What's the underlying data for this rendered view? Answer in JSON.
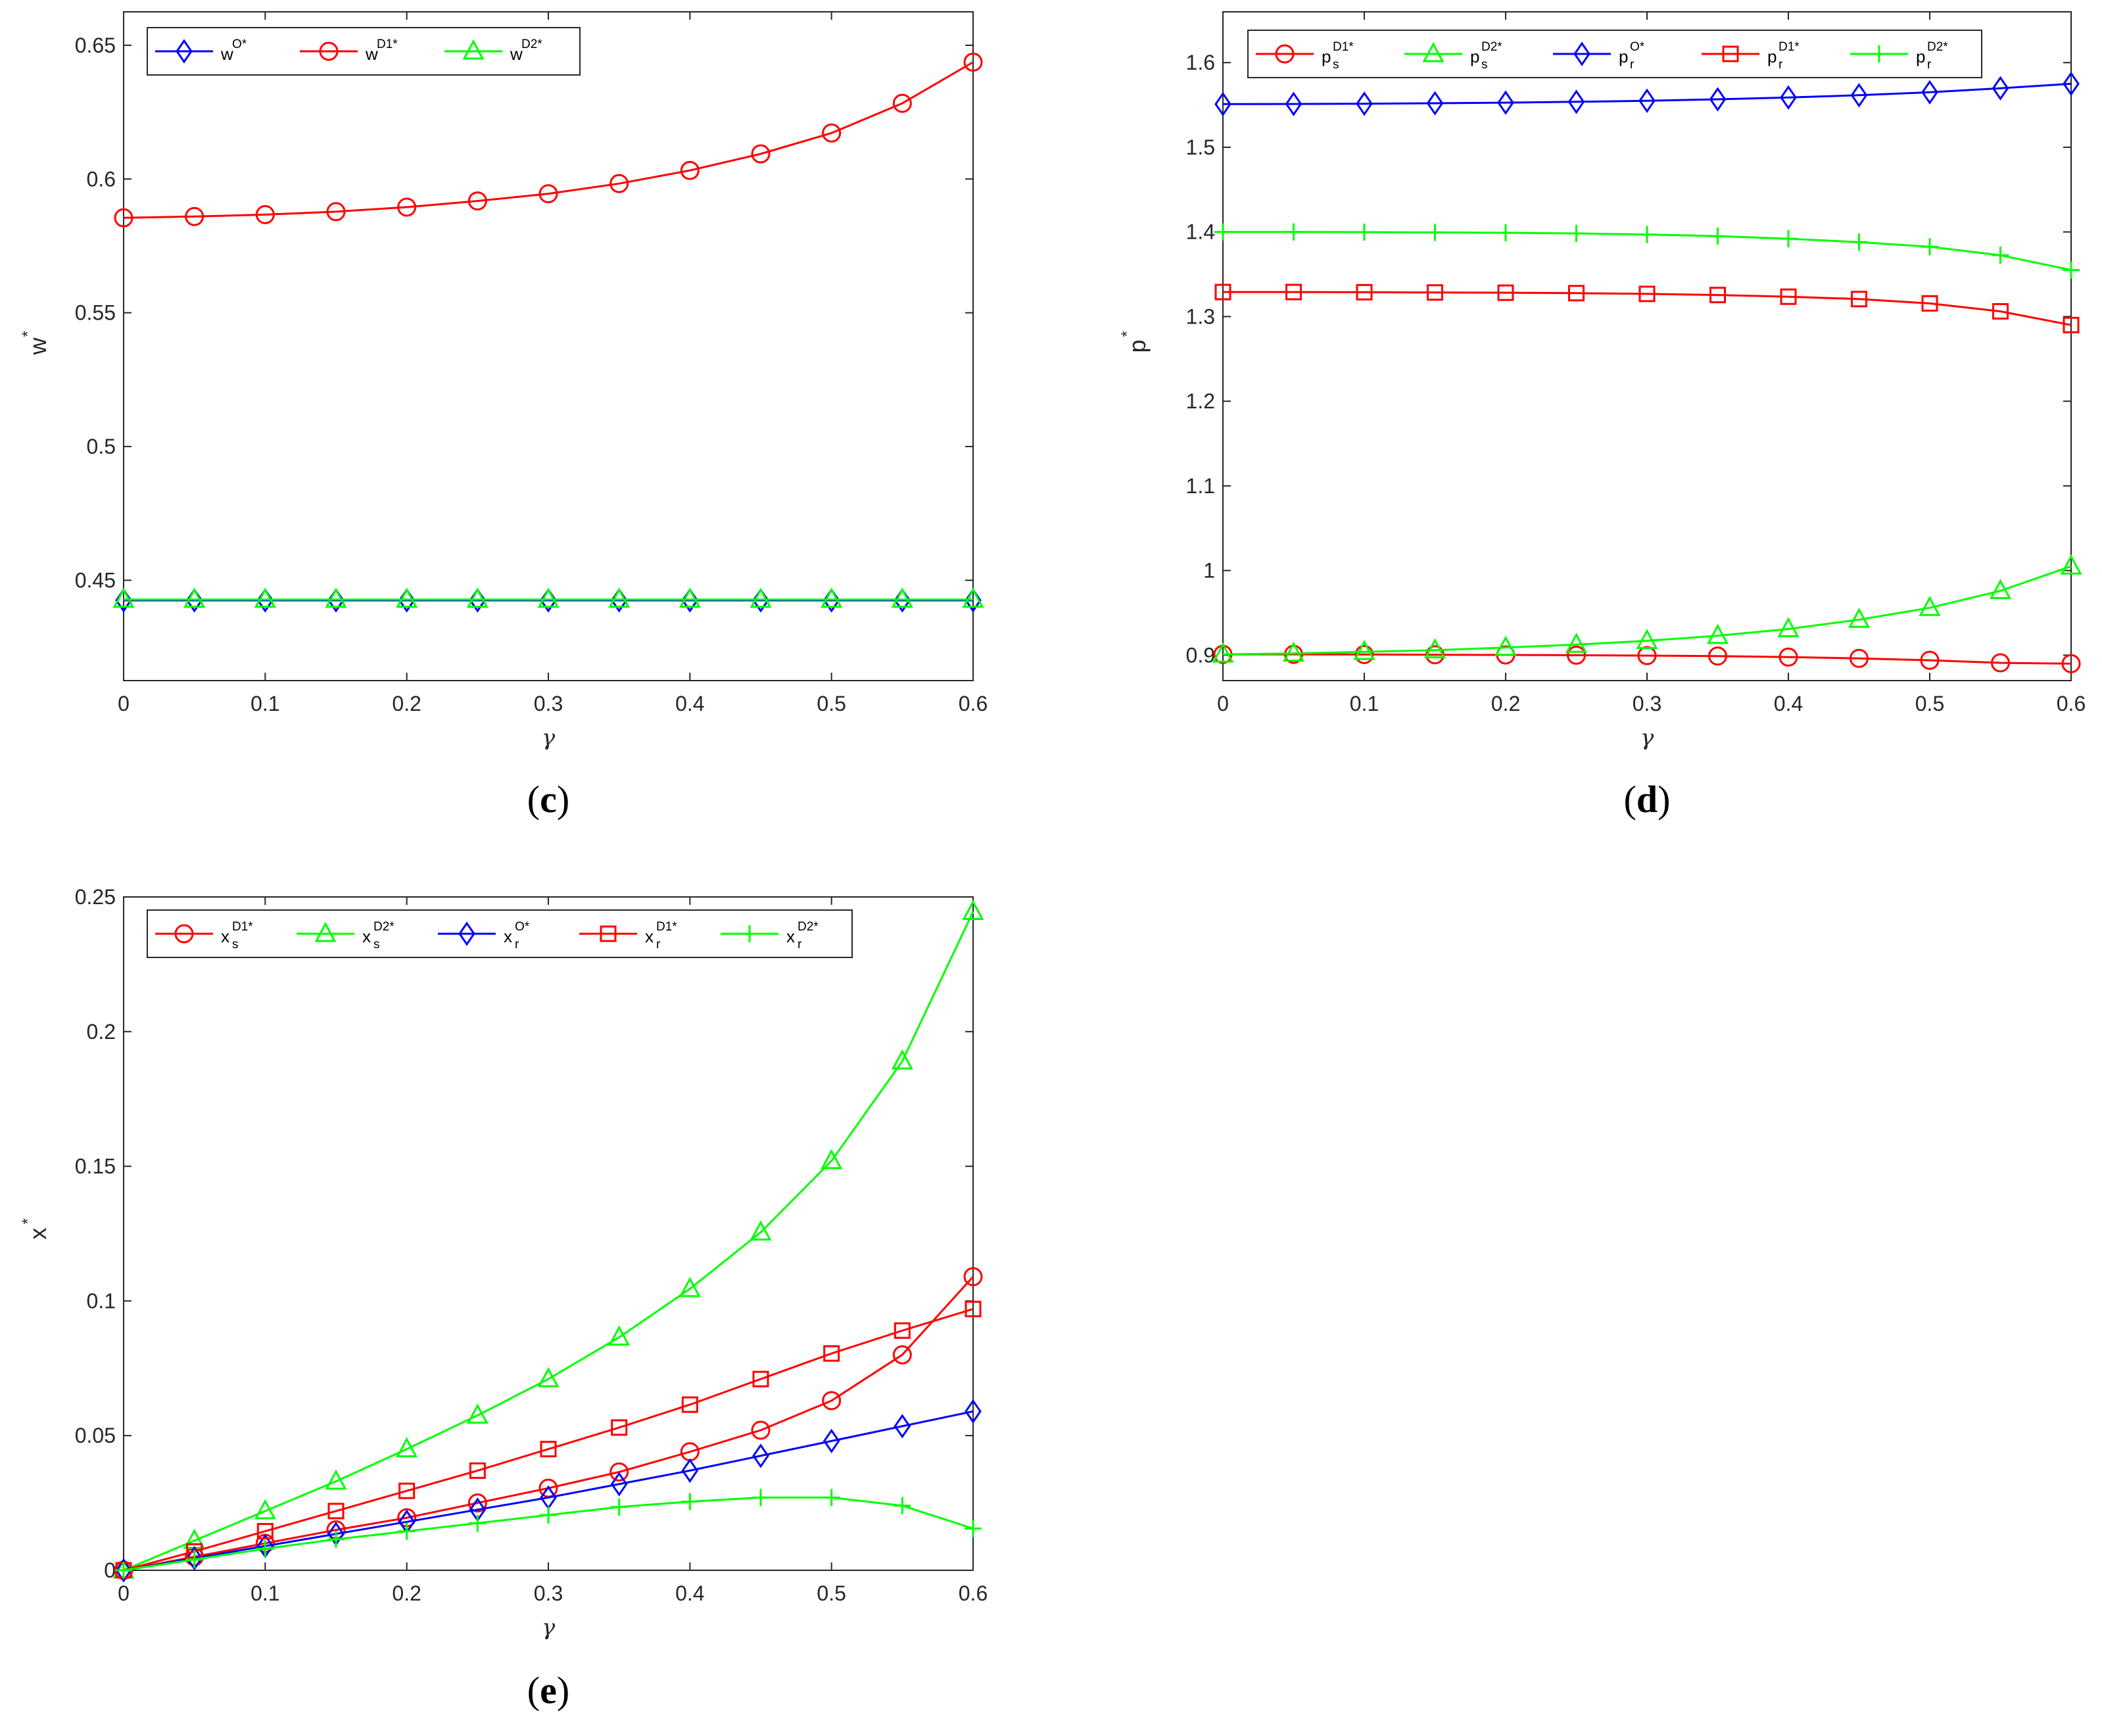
{
  "chart_data": [
    {
      "type": "line",
      "panel": "c",
      "caption": {
        "open": "(",
        "letter": "c",
        "close": ")"
      },
      "xlabel": "γ",
      "ylabel": "w",
      "ylabel_sup": "*",
      "xlim": [
        0,
        0.6
      ],
      "ylim": [
        0.4125,
        0.6625
      ],
      "xticks": [
        0,
        0.1,
        0.2,
        0.3,
        0.4,
        0.5,
        0.6
      ],
      "xtick_labels": [
        "0",
        "0.1",
        "0.2",
        "0.3",
        "0.4",
        "0.5",
        "0.6"
      ],
      "yticks": [
        0.45,
        0.5,
        0.55,
        0.6,
        0.65
      ],
      "ytick_labels": [
        "0.45",
        "0.5",
        "0.55",
        "0.6",
        "0.65"
      ],
      "legend_position": "top-left",
      "x": [
        0,
        0.05,
        0.1,
        0.15,
        0.2,
        0.25,
        0.3,
        0.35,
        0.4,
        0.45,
        0.5,
        0.55,
        0.6
      ],
      "series": [
        {
          "name": "wO*",
          "base": "w",
          "sub": "",
          "sup": "O*",
          "color": "#0000ff",
          "marker": "diamond",
          "values": [
            0.4425,
            0.4425,
            0.4425,
            0.4425,
            0.4425,
            0.4425,
            0.4425,
            0.4425,
            0.4425,
            0.4425,
            0.4425,
            0.4425,
            0.4425
          ]
        },
        {
          "name": "wD1*",
          "base": "w",
          "sub": "",
          "sup": "D1*",
          "color": "#ff0000",
          "marker": "circle",
          "values": [
            0.5855,
            0.586,
            0.5867,
            0.5878,
            0.5895,
            0.5918,
            0.5945,
            0.5983,
            0.6032,
            0.6094,
            0.6172,
            0.6283,
            0.6437
          ]
        },
        {
          "name": "wD2*",
          "base": "w",
          "sub": "",
          "sup": "D2*",
          "color": "#00ff00",
          "marker": "triangle",
          "values": [
            0.4428,
            0.4428,
            0.4428,
            0.4428,
            0.4428,
            0.4428,
            0.4428,
            0.4428,
            0.4428,
            0.4428,
            0.4428,
            0.4428,
            0.4428
          ]
        }
      ]
    },
    {
      "type": "line",
      "panel": "d",
      "caption": {
        "open": "(",
        "letter": "d",
        "close": ")"
      },
      "xlabel": "γ",
      "ylabel": "p",
      "ylabel_sup": "*",
      "xlim": [
        0,
        0.6
      ],
      "ylim": [
        0.87,
        1.66
      ],
      "xticks": [
        0,
        0.1,
        0.2,
        0.3,
        0.4,
        0.5,
        0.6
      ],
      "xtick_labels": [
        "0",
        "0.1",
        "0.2",
        "0.3",
        "0.4",
        "0.5",
        "0.6"
      ],
      "yticks": [
        0.9,
        1,
        1.1,
        1.2,
        1.3,
        1.4,
        1.5,
        1.6
      ],
      "ytick_labels": [
        "0.9",
        "1",
        "1.1",
        "1.2",
        "1.3",
        "1.4",
        "1.5",
        "1.6"
      ],
      "legend_position": "top-left",
      "x": [
        0,
        0.05,
        0.1,
        0.15,
        0.2,
        0.25,
        0.3,
        0.35,
        0.4,
        0.45,
        0.5,
        0.55,
        0.6
      ],
      "series": [
        {
          "name": "psD1*",
          "base": "p",
          "sub": "s",
          "sup": "D1*",
          "color": "#ff0000",
          "marker": "circle",
          "values": [
            0.901,
            0.901,
            0.9008,
            0.9005,
            0.9003,
            0.9,
            0.8995,
            0.899,
            0.8978,
            0.8962,
            0.894,
            0.891,
            0.89
          ]
        },
        {
          "name": "psD2*",
          "base": "p",
          "sub": "s",
          "sup": "D2*",
          "color": "#00ff00",
          "marker": "triangle",
          "values": [
            0.901,
            0.902,
            0.904,
            0.906,
            0.909,
            0.9125,
            0.917,
            0.923,
            0.931,
            0.942,
            0.956,
            0.976,
            1.005
          ]
        },
        {
          "name": "prO*",
          "base": "p",
          "sub": "r",
          "sup": "O*",
          "color": "#0000ff",
          "marker": "diamond",
          "values": [
            1.551,
            1.5512,
            1.5515,
            1.552,
            1.5527,
            1.5537,
            1.555,
            1.5567,
            1.5588,
            1.5615,
            1.565,
            1.5697,
            1.575
          ]
        },
        {
          "name": "prD1*",
          "base": "p",
          "sub": "r",
          "sup": "D1*",
          "color": "#ff0000",
          "marker": "square",
          "values": [
            1.329,
            1.329,
            1.3288,
            1.3285,
            1.3282,
            1.3277,
            1.3268,
            1.3255,
            1.3235,
            1.3207,
            1.3156,
            1.3062,
            1.29
          ]
        },
        {
          "name": "prD2*",
          "base": "p",
          "sub": "r",
          "sup": "D2*",
          "color": "#00ff00",
          "marker": "plus",
          "values": [
            1.4,
            1.4,
            1.3998,
            1.3995,
            1.399,
            1.3982,
            1.397,
            1.395,
            1.392,
            1.388,
            1.3825,
            1.3725,
            1.355
          ]
        }
      ]
    },
    {
      "type": "line",
      "panel": "e",
      "caption": {
        "open": "(",
        "letter": "e",
        "close": ")"
      },
      "xlabel": "γ",
      "ylabel": "x",
      "ylabel_sup": "*",
      "xlim": [
        0,
        0.6
      ],
      "ylim": [
        0,
        0.25
      ],
      "xticks": [
        0,
        0.1,
        0.2,
        0.3,
        0.4,
        0.5,
        0.6
      ],
      "xtick_labels": [
        "0",
        "0.1",
        "0.2",
        "0.3",
        "0.4",
        "0.5",
        "0.6"
      ],
      "yticks": [
        0,
        0.05,
        0.1,
        0.15,
        0.2,
        0.25
      ],
      "ytick_labels": [
        "0",
        "0.05",
        "0.1",
        "0.15",
        "0.2",
        "0.25"
      ],
      "legend_position": "top-left",
      "x": [
        0,
        0.05,
        0.1,
        0.15,
        0.2,
        0.25,
        0.3,
        0.35,
        0.4,
        0.45,
        0.5,
        0.55,
        0.6
      ],
      "series": [
        {
          "name": "xsD1*",
          "base": "x",
          "sub": "s",
          "sup": "D1*",
          "color": "#ff0000",
          "marker": "circle",
          "values": [
            0,
            0.005,
            0.01,
            0.015,
            0.0195,
            0.025,
            0.0305,
            0.0365,
            0.044,
            0.052,
            0.063,
            0.08,
            0.109
          ]
        },
        {
          "name": "xsD2*",
          "base": "x",
          "sub": "s",
          "sup": "D2*",
          "color": "#00ff00",
          "marker": "triangle",
          "values": [
            0,
            0.011,
            0.022,
            0.033,
            0.045,
            0.0575,
            0.071,
            0.0865,
            0.1045,
            0.1255,
            0.152,
            0.189,
            0.2445
          ]
        },
        {
          "name": "xrO*",
          "base": "x",
          "sub": "r",
          "sup": "O*",
          "color": "#0000ff",
          "marker": "diamond",
          "values": [
            0,
            0.0045,
            0.009,
            0.0135,
            0.018,
            0.0225,
            0.027,
            0.032,
            0.037,
            0.0425,
            0.048,
            0.0535,
            0.059
          ]
        },
        {
          "name": "xrD1*",
          "base": "x",
          "sub": "r",
          "sup": "D1*",
          "color": "#ff0000",
          "marker": "square",
          "values": [
            0,
            0.007,
            0.0145,
            0.022,
            0.0295,
            0.037,
            0.045,
            0.053,
            0.0615,
            0.071,
            0.0805,
            0.089,
            0.097
          ]
        },
        {
          "name": "xrD2*",
          "base": "x",
          "sub": "r",
          "sup": "D2*",
          "color": "#00ff00",
          "marker": "plus",
          "values": [
            0,
            0.004,
            0.008,
            0.0115,
            0.0145,
            0.0175,
            0.0205,
            0.0235,
            0.0255,
            0.027,
            0.027,
            0.024,
            0.0155
          ]
        }
      ]
    }
  ]
}
